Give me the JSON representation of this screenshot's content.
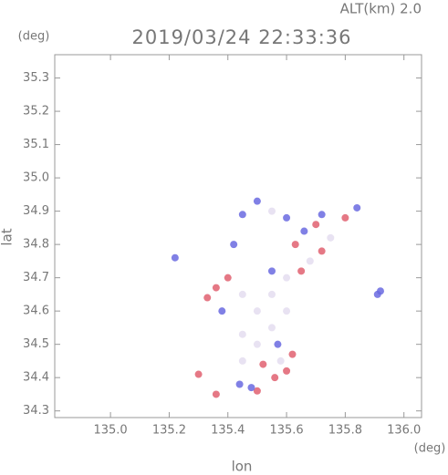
{
  "chart_data": {
    "type": "scatter",
    "title": "2019/03/24 22:33:36",
    "subtitle": "ALT(km) 2.0",
    "x_label": "lon",
    "y_label": "lat",
    "x_unit": "(deg)",
    "y_unit": "(deg)",
    "xlim": [
      134.81,
      136.06
    ],
    "ylim": [
      34.28,
      35.37
    ],
    "xticks": [
      {
        "value": 135.0,
        "label": "135.0"
      },
      135.2,
      135.4,
      135.6,
      135.8,
      {
        "value": 136.0,
        "label": "136.0"
      }
    ],
    "yticks": [
      34.3,
      34.4,
      34.5,
      34.6,
      34.7,
      34.8,
      34.9,
      {
        "value": 35.0,
        "label": "35.0"
      },
      35.1,
      35.2,
      35.3
    ],
    "series": [
      {
        "color": "#e06070",
        "x": [
          135.3,
          135.5,
          135.36,
          135.56,
          135.6,
          135.62,
          135.4,
          135.36,
          135.63,
          135.7,
          135.72,
          135.8,
          135.33,
          135.65,
          135.52
        ],
        "values": [
          34.41,
          34.36,
          34.35,
          34.4,
          34.42,
          34.47,
          34.7,
          34.67,
          34.8,
          34.86,
          34.78,
          34.88,
          34.64,
          34.72,
          34.44
        ]
      },
      {
        "color": "#6a6ae0",
        "x": [
          135.44,
          135.48,
          135.57,
          135.55,
          135.38,
          135.66,
          135.84,
          135.72,
          135.5,
          135.45,
          135.6,
          135.92,
          135.91,
          135.22,
          135.42
        ],
        "values": [
          34.38,
          34.37,
          34.5,
          34.72,
          34.6,
          34.84,
          34.91,
          34.89,
          34.93,
          34.89,
          34.88,
          34.66,
          34.65,
          34.76,
          34.8
        ]
      },
      {
        "color": "#e4ddf0",
        "x": [
          135.55,
          135.5,
          135.45,
          135.55,
          135.6,
          135.5,
          135.45,
          135.6,
          135.75,
          135.68,
          135.55,
          135.58,
          135.45
        ],
        "values": [
          34.55,
          34.6,
          34.65,
          34.65,
          34.6,
          34.5,
          34.45,
          34.7,
          34.82,
          34.75,
          34.9,
          34.45,
          34.53
        ]
      }
    ]
  }
}
